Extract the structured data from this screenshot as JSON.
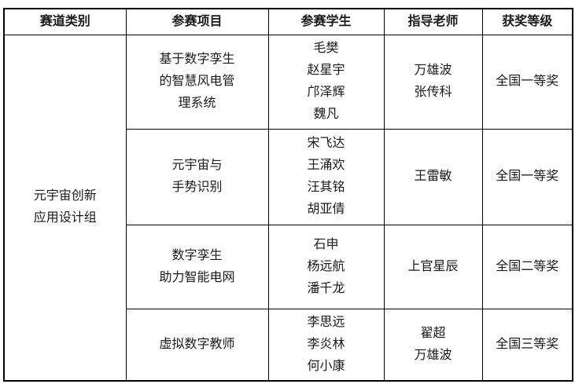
{
  "colors": {
    "border": "#000000",
    "text": "#1a1a1a",
    "background": "#ffffff"
  },
  "table": {
    "headers": [
      "赛道类别",
      "参赛项目",
      "参赛学生",
      "指导老师",
      "获奖等级"
    ],
    "track_category": [
      "元宇宙创新",
      "应用设计组"
    ],
    "rows": [
      {
        "project": [
          "基于数字孪生",
          "的智慧风电管",
          "理系统"
        ],
        "students": [
          "毛樊",
          "赵星宇",
          "邝泽辉",
          "魏凡"
        ],
        "advisors": [
          "万雄波",
          "张传科"
        ],
        "award": "全国一等奖"
      },
      {
        "project": [
          "元宇宙与",
          "手势识别"
        ],
        "students": [
          "宋飞达",
          "王涌欢",
          "汪其铭",
          "胡亚倩"
        ],
        "advisors": [
          "王雷敏"
        ],
        "award": "全国一等奖"
      },
      {
        "project": [
          "数字孪生",
          "助力智能电网"
        ],
        "students": [
          "石申",
          "杨远航",
          "潘千龙"
        ],
        "advisors": [
          "上官星辰"
        ],
        "award": "全国二等奖"
      },
      {
        "project": [
          "虚拟数字教师"
        ],
        "students": [
          "李思远",
          "李炎林",
          "何小康"
        ],
        "advisors": [
          "翟超",
          "万雄波"
        ],
        "award": "全国三等奖"
      }
    ]
  }
}
